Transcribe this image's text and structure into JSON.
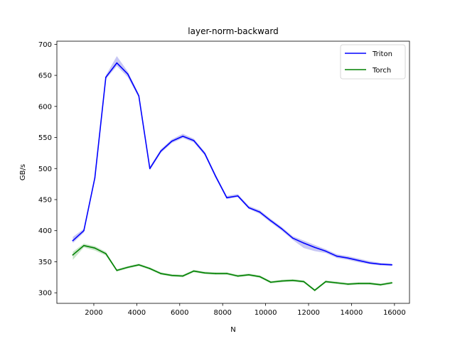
{
  "chart_data": {
    "type": "line",
    "title": "layer-norm-backward",
    "xlabel": "N",
    "ylabel": "GB/s",
    "xlim": [
      280,
      16700
    ],
    "ylim": [
      283,
      705
    ],
    "xticks": [
      2000,
      4000,
      6000,
      8000,
      10000,
      12000,
      14000,
      16000
    ],
    "xtick_labels": [
      "2000",
      "4000",
      "6000",
      "8000",
      "10000",
      "12000",
      "14000",
      "16000"
    ],
    "yticks": [
      300,
      350,
      400,
      450,
      500,
      550,
      600,
      650,
      700
    ],
    "ytick_labels": [
      "300",
      "350",
      "400",
      "450",
      "500",
      "550",
      "600",
      "650",
      "700"
    ],
    "grid": false,
    "legend_position": "upper right",
    "x": [
      1024,
      1536,
      2048,
      2560,
      3072,
      3584,
      4096,
      4608,
      5120,
      5632,
      6144,
      6656,
      7168,
      7680,
      8192,
      8704,
      9216,
      9728,
      10240,
      10752,
      11264,
      11776,
      12288,
      12800,
      13312,
      13824,
      14336,
      14848,
      15360,
      15872
    ],
    "series": [
      {
        "name": "Triton",
        "color": "#0000ff",
        "band_color": "#b4b4f0",
        "values": [
          384,
          400,
          485,
          647,
          670,
          652,
          617,
          500,
          528,
          544,
          552,
          545,
          524,
          487,
          453,
          456,
          437,
          430,
          416,
          403,
          388,
          380,
          373,
          367,
          359,
          356,
          352,
          348,
          346,
          345
        ],
        "lower": [
          380,
          397,
          483,
          644,
          665,
          647,
          614,
          497,
          525,
          541,
          549,
          542,
          521,
          484,
          451,
          454,
          435,
          427,
          413,
          400,
          385,
          372,
          367,
          364,
          356,
          353,
          349,
          346,
          344,
          343
        ],
        "upper": [
          390,
          403,
          488,
          650,
          681,
          656,
          620,
          503,
          531,
          547,
          556,
          548,
          527,
          490,
          456,
          459,
          440,
          433,
          419,
          406,
          391,
          384,
          377,
          370,
          362,
          359,
          355,
          351,
          348,
          347
        ]
      },
      {
        "name": "Torch",
        "color": "#008000",
        "band_color": "#b4dcb4",
        "values": [
          361,
          376,
          372,
          363,
          336,
          341,
          345,
          339,
          331,
          328,
          327,
          335,
          332,
          331,
          331,
          327,
          329,
          326,
          317,
          319,
          320,
          318,
          304,
          318,
          316,
          314,
          315,
          315,
          313,
          316
        ],
        "lower": [
          353,
          373,
          368,
          360,
          334,
          339,
          343,
          337,
          329,
          326,
          325,
          333,
          330,
          329,
          329,
          325,
          327,
          324,
          315,
          317,
          318,
          316,
          302,
          316,
          314,
          312,
          313,
          313,
          311,
          314
        ],
        "upper": [
          366,
          379,
          375,
          366,
          338,
          343,
          347,
          341,
          333,
          330,
          329,
          337,
          334,
          333,
          333,
          329,
          331,
          328,
          319,
          321,
          322,
          320,
          306,
          320,
          318,
          316,
          317,
          317,
          315,
          318
        ]
      }
    ]
  }
}
